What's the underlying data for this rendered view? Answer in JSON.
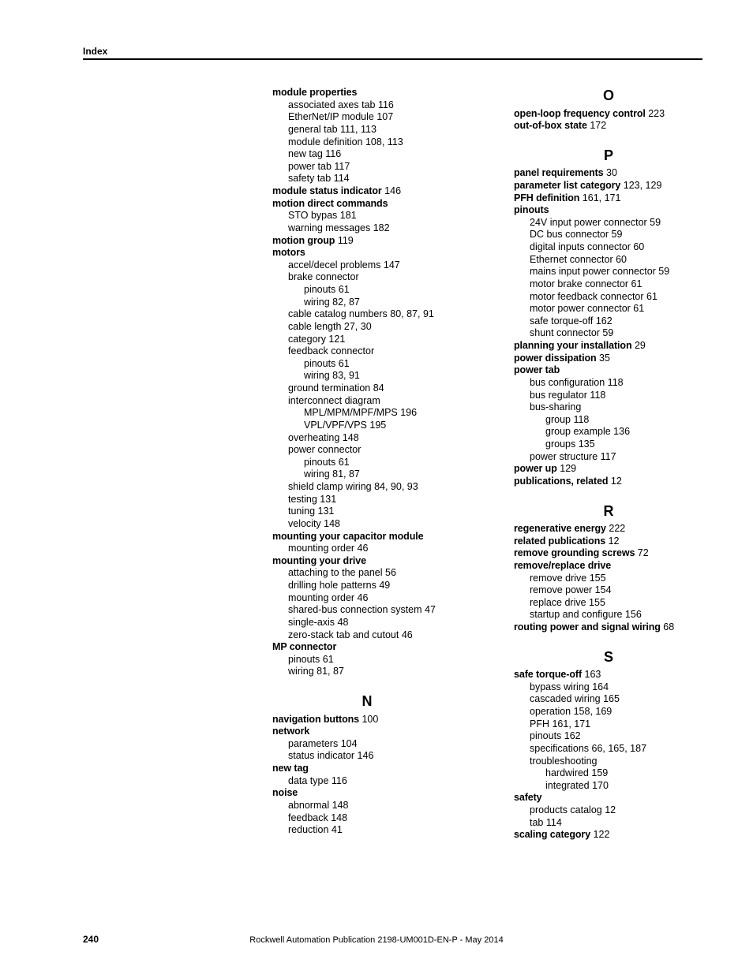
{
  "header": {
    "label": "Index"
  },
  "footer": {
    "page": "240",
    "publication": "Rockwell Automation Publication 2198-UM001D-EN-P - May 2014"
  },
  "col1": [
    {
      "lvl": 0,
      "bold": true,
      "t": "module properties"
    },
    {
      "lvl": 1,
      "bold": false,
      "t": "associated axes tab 116"
    },
    {
      "lvl": 1,
      "bold": false,
      "t": "EtherNet/IP module 107"
    },
    {
      "lvl": 1,
      "bold": false,
      "t": "general tab 111, 113"
    },
    {
      "lvl": 1,
      "bold": false,
      "t": "module definition 108, 113"
    },
    {
      "lvl": 1,
      "bold": false,
      "t": "new tag 116"
    },
    {
      "lvl": 1,
      "bold": false,
      "t": "power tab 117"
    },
    {
      "lvl": 1,
      "bold": false,
      "t": "safety tab 114"
    },
    {
      "lvl": 0,
      "bold": true,
      "t": "module status indicator",
      "tail": " 146"
    },
    {
      "lvl": 0,
      "bold": true,
      "t": "motion direct commands"
    },
    {
      "lvl": 1,
      "bold": false,
      "t": "STO bypas 181"
    },
    {
      "lvl": 1,
      "bold": false,
      "t": "warning messages 182"
    },
    {
      "lvl": 0,
      "bold": true,
      "t": "motion group",
      "tail": " 119"
    },
    {
      "lvl": 0,
      "bold": true,
      "t": "motors"
    },
    {
      "lvl": 1,
      "bold": false,
      "t": "accel/decel problems 147"
    },
    {
      "lvl": 1,
      "bold": false,
      "t": "brake connector"
    },
    {
      "lvl": 2,
      "bold": false,
      "t": "pinouts 61"
    },
    {
      "lvl": 2,
      "bold": false,
      "t": "wiring 82, 87"
    },
    {
      "lvl": 1,
      "bold": false,
      "t": "cable catalog numbers 80, 87, 91"
    },
    {
      "lvl": 1,
      "bold": false,
      "t": "cable length 27, 30"
    },
    {
      "lvl": 1,
      "bold": false,
      "t": "category 121"
    },
    {
      "lvl": 1,
      "bold": false,
      "t": "feedback connector"
    },
    {
      "lvl": 2,
      "bold": false,
      "t": "pinouts 61"
    },
    {
      "lvl": 2,
      "bold": false,
      "t": "wiring 83, 91"
    },
    {
      "lvl": 1,
      "bold": false,
      "t": "ground termination 84"
    },
    {
      "lvl": 1,
      "bold": false,
      "t": "interconnect diagram"
    },
    {
      "lvl": 2,
      "bold": false,
      "t": "MPL/MPM/MPF/MPS 196"
    },
    {
      "lvl": 2,
      "bold": false,
      "t": "VPL/VPF/VPS 195"
    },
    {
      "lvl": 1,
      "bold": false,
      "t": "overheating 148"
    },
    {
      "lvl": 1,
      "bold": false,
      "t": "power connector"
    },
    {
      "lvl": 2,
      "bold": false,
      "t": "pinouts 61"
    },
    {
      "lvl": 2,
      "bold": false,
      "t": "wiring 81, 87"
    },
    {
      "lvl": 1,
      "bold": false,
      "t": "shield clamp wiring 84, 90, 93"
    },
    {
      "lvl": 1,
      "bold": false,
      "t": "testing 131"
    },
    {
      "lvl": 1,
      "bold": false,
      "t": "tuning 131"
    },
    {
      "lvl": 1,
      "bold": false,
      "t": "velocity 148"
    },
    {
      "lvl": 0,
      "bold": true,
      "t": "mounting your capacitor module"
    },
    {
      "lvl": 1,
      "bold": false,
      "t": "mounting order 46"
    },
    {
      "lvl": 0,
      "bold": true,
      "t": "mounting your drive"
    },
    {
      "lvl": 1,
      "bold": false,
      "t": "attaching to the panel 56"
    },
    {
      "lvl": 1,
      "bold": false,
      "t": "drilling hole patterns 49"
    },
    {
      "lvl": 1,
      "bold": false,
      "t": "mounting order 46"
    },
    {
      "lvl": 1,
      "bold": false,
      "t": "shared-bus connection system 47"
    },
    {
      "lvl": 1,
      "bold": false,
      "t": "single-axis 48"
    },
    {
      "lvl": 1,
      "bold": false,
      "t": "zero-stack tab and cutout 46"
    },
    {
      "lvl": 0,
      "bold": true,
      "t": "MP connector"
    },
    {
      "lvl": 1,
      "bold": false,
      "t": "pinouts 61"
    },
    {
      "lvl": 1,
      "bold": false,
      "t": "wiring 81, 87"
    },
    {
      "letter": "N"
    },
    {
      "lvl": 0,
      "bold": true,
      "t": "navigation buttons",
      "tail": " 100"
    },
    {
      "lvl": 0,
      "bold": true,
      "t": "network"
    },
    {
      "lvl": 1,
      "bold": false,
      "t": "parameters 104"
    },
    {
      "lvl": 1,
      "bold": false,
      "t": "status indicator 146"
    },
    {
      "lvl": 0,
      "bold": true,
      "t": "new tag"
    },
    {
      "lvl": 1,
      "bold": false,
      "t": "data type 116"
    },
    {
      "lvl": 0,
      "bold": true,
      "t": "noise"
    },
    {
      "lvl": 1,
      "bold": false,
      "t": "abnormal 148"
    },
    {
      "lvl": 1,
      "bold": false,
      "t": "feedback 148"
    },
    {
      "lvl": 1,
      "bold": false,
      "t": "reduction 41"
    }
  ],
  "col2": [
    {
      "letter": "O",
      "first": true
    },
    {
      "lvl": 0,
      "bold": true,
      "t": "open-loop frequency control",
      "tail": " 223"
    },
    {
      "lvl": 0,
      "bold": true,
      "t": "out-of-box state",
      "tail": " 172"
    },
    {
      "letter": "P"
    },
    {
      "lvl": 0,
      "bold": true,
      "t": "panel requirements",
      "tail": " 30"
    },
    {
      "lvl": 0,
      "bold": true,
      "t": "parameter list category",
      "tail": " 123, 129"
    },
    {
      "lvl": 0,
      "bold": true,
      "t": "PFH definition",
      "tail": " 161, 171"
    },
    {
      "lvl": 0,
      "bold": true,
      "t": "pinouts"
    },
    {
      "lvl": 1,
      "bold": false,
      "t": "24V input power connector 59"
    },
    {
      "lvl": 1,
      "bold": false,
      "t": "DC bus connector 59"
    },
    {
      "lvl": 1,
      "bold": false,
      "t": "digital inputs connector 60"
    },
    {
      "lvl": 1,
      "bold": false,
      "t": "Ethernet connector 60"
    },
    {
      "lvl": 1,
      "bold": false,
      "t": "mains input power connector 59"
    },
    {
      "lvl": 1,
      "bold": false,
      "t": "motor brake connector 61"
    },
    {
      "lvl": 1,
      "bold": false,
      "t": "motor feedback connector 61"
    },
    {
      "lvl": 1,
      "bold": false,
      "t": "motor power connector 61"
    },
    {
      "lvl": 1,
      "bold": false,
      "t": "safe torque-off 162"
    },
    {
      "lvl": 1,
      "bold": false,
      "t": "shunt connector 59"
    },
    {
      "lvl": 0,
      "bold": true,
      "t": "planning your installation",
      "tail": " 29"
    },
    {
      "lvl": 0,
      "bold": true,
      "t": "power dissipation",
      "tail": " 35"
    },
    {
      "lvl": 0,
      "bold": true,
      "t": "power tab"
    },
    {
      "lvl": 1,
      "bold": false,
      "t": "bus configuration 118"
    },
    {
      "lvl": 1,
      "bold": false,
      "t": "bus regulator 118"
    },
    {
      "lvl": 1,
      "bold": false,
      "t": "bus-sharing"
    },
    {
      "lvl": 2,
      "bold": false,
      "t": "group 118"
    },
    {
      "lvl": 2,
      "bold": false,
      "t": "group example 136"
    },
    {
      "lvl": 2,
      "bold": false,
      "t": "groups 135"
    },
    {
      "lvl": 1,
      "bold": false,
      "t": "power structure 117"
    },
    {
      "lvl": 0,
      "bold": true,
      "t": "power up",
      "tail": " 129"
    },
    {
      "lvl": 0,
      "bold": true,
      "t": "publications, related",
      "tail": " 12"
    },
    {
      "letter": "R"
    },
    {
      "lvl": 0,
      "bold": true,
      "t": "regenerative energy",
      "tail": " 222"
    },
    {
      "lvl": 0,
      "bold": true,
      "t": "related publications",
      "tail": " 12"
    },
    {
      "lvl": 0,
      "bold": true,
      "t": "remove grounding screws",
      "tail": " 72"
    },
    {
      "lvl": 0,
      "bold": true,
      "t": "remove/replace drive"
    },
    {
      "lvl": 1,
      "bold": false,
      "t": "remove drive 155"
    },
    {
      "lvl": 1,
      "bold": false,
      "t": "remove power 154"
    },
    {
      "lvl": 1,
      "bold": false,
      "t": "replace drive 155"
    },
    {
      "lvl": 1,
      "bold": false,
      "t": "startup and configure 156"
    },
    {
      "lvl": 0,
      "bold": true,
      "t": "routing power and signal wiring",
      "tail": " 68"
    },
    {
      "letter": "S"
    },
    {
      "lvl": 0,
      "bold": true,
      "t": "safe torque-off",
      "tail": " 163"
    },
    {
      "lvl": 1,
      "bold": false,
      "t": "bypass wiring 164"
    },
    {
      "lvl": 1,
      "bold": false,
      "t": "cascaded wiring 165"
    },
    {
      "lvl": 1,
      "bold": false,
      "t": "operation 158, 169"
    },
    {
      "lvl": 1,
      "bold": false,
      "t": "PFH 161, 171"
    },
    {
      "lvl": 1,
      "bold": false,
      "t": "pinouts 162"
    },
    {
      "lvl": 1,
      "bold": false,
      "t": "specifications 66, 165, 187"
    },
    {
      "lvl": 1,
      "bold": false,
      "t": "troubleshooting"
    },
    {
      "lvl": 2,
      "bold": false,
      "t": "hardwired 159"
    },
    {
      "lvl": 2,
      "bold": false,
      "t": "integrated 170"
    },
    {
      "lvl": 0,
      "bold": true,
      "t": "safety"
    },
    {
      "lvl": 1,
      "bold": false,
      "t": "products catalog 12"
    },
    {
      "lvl": 1,
      "bold": false,
      "t": "tab 114"
    },
    {
      "lvl": 0,
      "bold": true,
      "t": "scaling category",
      "tail": " 122"
    }
  ]
}
